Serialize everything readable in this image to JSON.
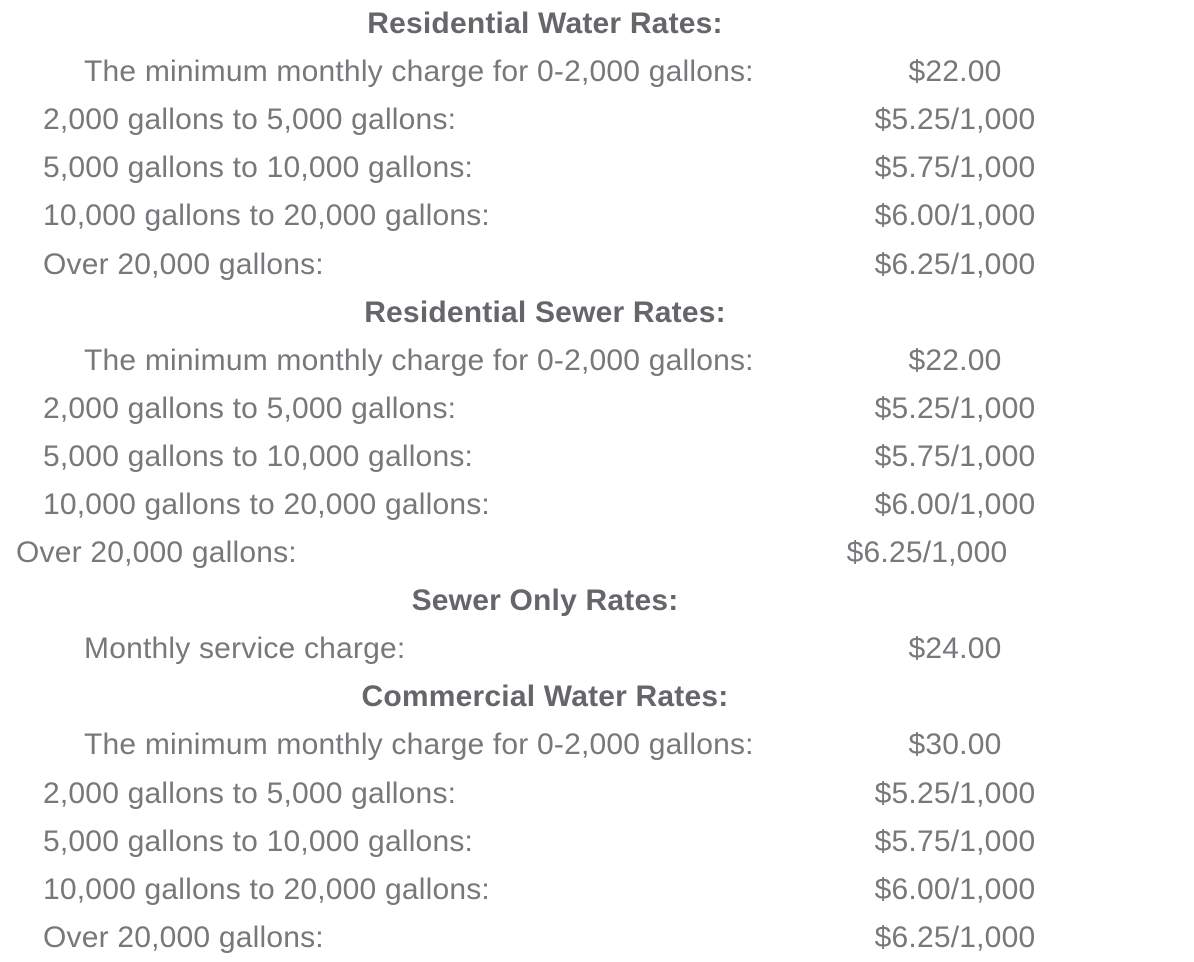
{
  "page": {
    "background_color": "#ffffff",
    "body_text_color": "#77787b",
    "heading_text_color": "#65666a"
  },
  "sections": [
    {
      "heading": "Residential Water Rates:",
      "rows": [
        {
          "label": "The minimum monthly charge for 0-2,000 gallons:",
          "value": "$22.00"
        },
        {
          "label": "2,000 gallons to 5,000 gallons:",
          "value": "$5.25/1,000"
        },
        {
          "label": "5,000 gallons to 10,000 gallons:",
          "value": "$5.75/1,000"
        },
        {
          "label": "10,000 gallons to 20,000 gallons:",
          "value": "$6.00/1,000"
        },
        {
          "label": "Over 20,000 gallons:",
          "value": "$6.25/1,000"
        }
      ]
    },
    {
      "heading": "Residential Sewer Rates:",
      "rows": [
        {
          "label": "The minimum monthly charge for 0-2,000 gallons:",
          "value": "$22.00"
        },
        {
          "label": "2,000 gallons to 5,000 gallons:",
          "value": "$5.25/1,000"
        },
        {
          "label": "5,000 gallons to 10,000 gallons:",
          "value": "$5.75/1,000"
        },
        {
          "label": "10,000 gallons to 20,000 gallons:",
          "value": "$6.00/1,000"
        },
        {
          "label": "Over 20,000 gallons:",
          "value": "$6.25/1,000"
        }
      ]
    },
    {
      "heading": "Sewer Only Rates:",
      "rows": [
        {
          "label": "Monthly service charge:",
          "value": "$24.00"
        }
      ]
    },
    {
      "heading": "Commercial Water Rates:",
      "rows": [
        {
          "label": "The minimum monthly charge for 0-2,000 gallons:",
          "value": "$30.00"
        },
        {
          "label": "2,000 gallons to 5,000 gallons:",
          "value": "$5.25/1,000"
        },
        {
          "label": "5,000 gallons to 10,000 gallons:",
          "value": "$5.75/1,000"
        },
        {
          "label": "10,000 gallons to 20,000 gallons:",
          "value": "$6.00/1,000"
        },
        {
          "label": "Over 20,000 gallons:",
          "value": "$6.25/1,000"
        }
      ]
    }
  ]
}
